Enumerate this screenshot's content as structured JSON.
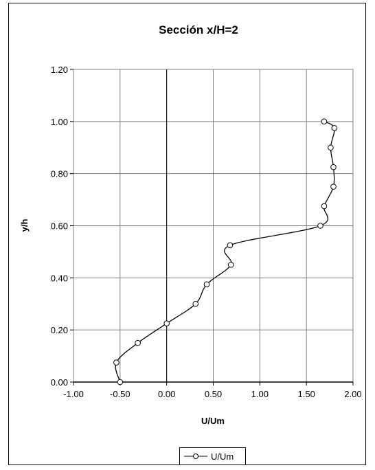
{
  "chart_data": {
    "type": "line",
    "title": "Sección x/H=2",
    "xlabel": "U/Um",
    "ylabel": "y/h",
    "xlim": [
      -1.0,
      2.0
    ],
    "ylim": [
      0.0,
      1.2
    ],
    "x_ticks": [
      "-1.00",
      "-0.50",
      "0.00",
      "0.50",
      "1.00",
      "1.50",
      "2.00"
    ],
    "y_ticks": [
      "0.00",
      "0.20",
      "0.40",
      "0.60",
      "0.80",
      "1.00",
      "1.20"
    ],
    "grid": true,
    "legend_position": "bottom",
    "series": [
      {
        "name": "U/Um",
        "color": "#000000",
        "marker": "open-circle",
        "points": [
          {
            "x": -0.5,
            "y": 0.0
          },
          {
            "x": -0.54,
            "y": 0.075
          },
          {
            "x": -0.31,
            "y": 0.15
          },
          {
            "x": 0.0,
            "y": 0.225
          },
          {
            "x": 0.31,
            "y": 0.3
          },
          {
            "x": 0.43,
            "y": 0.375
          },
          {
            "x": 0.69,
            "y": 0.45
          },
          {
            "x": 0.68,
            "y": 0.525
          },
          {
            "x": 1.65,
            "y": 0.6
          },
          {
            "x": 1.69,
            "y": 0.675
          },
          {
            "x": 1.79,
            "y": 0.75
          },
          {
            "x": 1.79,
            "y": 0.825
          },
          {
            "x": 1.76,
            "y": 0.9
          },
          {
            "x": 1.8,
            "y": 0.975
          },
          {
            "x": 1.69,
            "y": 1.0
          }
        ]
      }
    ]
  }
}
